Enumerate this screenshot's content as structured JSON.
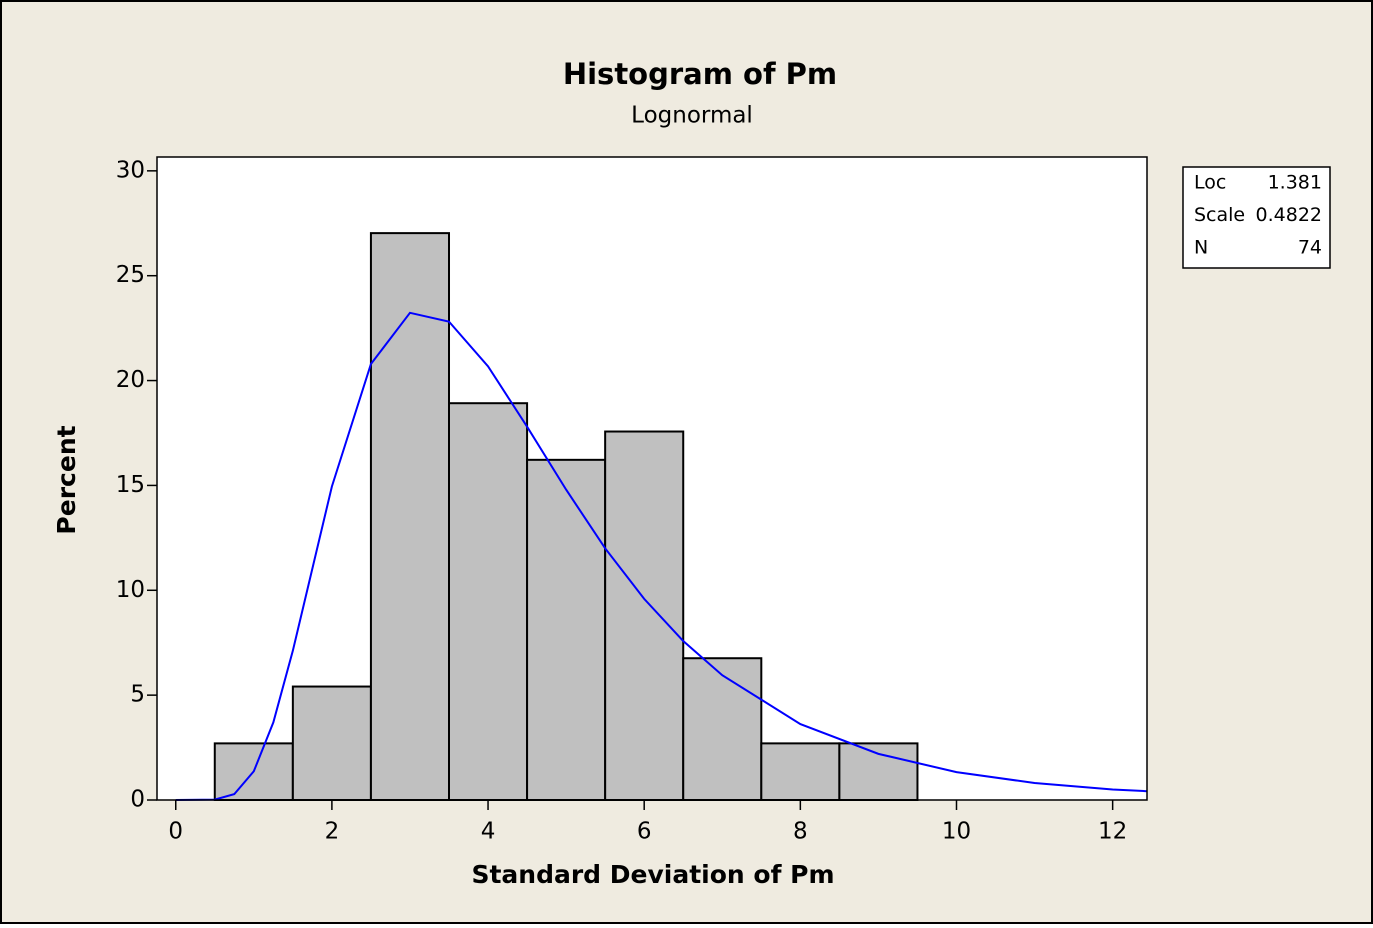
{
  "chart_data": {
    "type": "histogram",
    "title": "Histogram of Pm",
    "subtitle": "Lognormal",
    "x_label": "Standard Deviation of Pm",
    "y_label": "Percent",
    "bins": [
      0.5,
      1.5,
      2.5,
      3.5,
      4.5,
      5.5,
      6.5,
      7.5,
      8.5,
      9.5
    ],
    "values": [
      2.7,
      5.41,
      27.03,
      18.92,
      16.22,
      17.57,
      6.76,
      2.7,
      2.7
    ],
    "color": "#c0c0c0",
    "curve": {
      "color": "#0000ff",
      "x": [
        0,
        0.5,
        0.75,
        1,
        1.25,
        1.5,
        2,
        2.5,
        3,
        3.5,
        4,
        4.5,
        5,
        5.5,
        6,
        6.5,
        7,
        8,
        9,
        10,
        11,
        12,
        12.44
      ],
      "values": [
        0,
        0.02,
        0.28,
        1.37,
        3.7,
        7.12,
        14.95,
        20.79,
        23.23,
        22.81,
        20.68,
        17.8,
        14.8,
        12.0,
        9.59,
        7.58,
        5.95,
        3.62,
        2.2,
        1.33,
        0.81,
        0.5,
        0.42
      ]
    },
    "xlim": [
      -0.24,
      12.44
    ],
    "xticks": [
      0,
      2,
      4,
      6,
      8,
      10,
      12
    ],
    "ylim": [
      0,
      30.66
    ],
    "yticks": [
      0,
      5,
      10,
      15,
      20,
      25,
      30
    ],
    "stats": [
      {
        "label": "Loc",
        "value": 1.381
      },
      {
        "label": "Scale",
        "value": 0.4822
      },
      {
        "label": "N",
        "value": 74
      }
    ]
  }
}
